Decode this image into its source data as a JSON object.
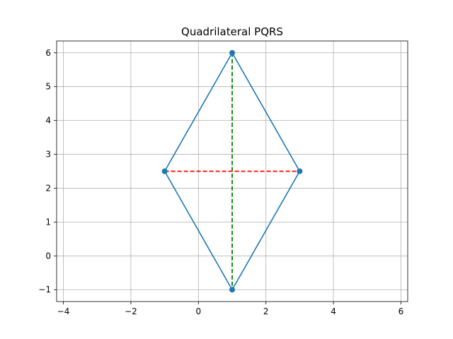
{
  "chart_data": {
    "type": "line",
    "title": "Quadrilateral PQRS",
    "xlabel": "",
    "ylabel": "",
    "xlim": [
      -4.2,
      6.2
    ],
    "ylim": [
      -1.35,
      6.35
    ],
    "x_ticks": [
      -4,
      -2,
      0,
      2,
      4,
      6
    ],
    "y_ticks": [
      -1,
      0,
      1,
      2,
      3,
      4,
      5,
      6
    ],
    "x_tick_labels": [
      "−4",
      "−2",
      "0",
      "2",
      "4",
      "6"
    ],
    "y_tick_labels": [
      "−1",
      "0",
      "1",
      "2",
      "3",
      "4",
      "5",
      "6"
    ],
    "grid": true,
    "legend": "none",
    "series": [
      {
        "kind": "polygon",
        "color": "#1f77b4",
        "style": "solid",
        "markers": true,
        "x": [
          1,
          3,
          1,
          -1,
          1
        ],
        "y": [
          6,
          2.5,
          -1,
          2.5,
          6
        ]
      },
      {
        "kind": "diagonal",
        "color": "#008000",
        "style": "dashed",
        "x": [
          1,
          1
        ],
        "y": [
          6,
          -1
        ]
      },
      {
        "kind": "diagonal",
        "color": "#ff0000",
        "style": "dashed",
        "x": [
          -1,
          3
        ],
        "y": [
          2.5,
          2.5
        ]
      }
    ],
    "points": [
      {
        "x": 1,
        "y": 6
      },
      {
        "x": 3,
        "y": 2.5
      },
      {
        "x": 1,
        "y": -1
      },
      {
        "x": -1,
        "y": 2.5
      }
    ]
  }
}
